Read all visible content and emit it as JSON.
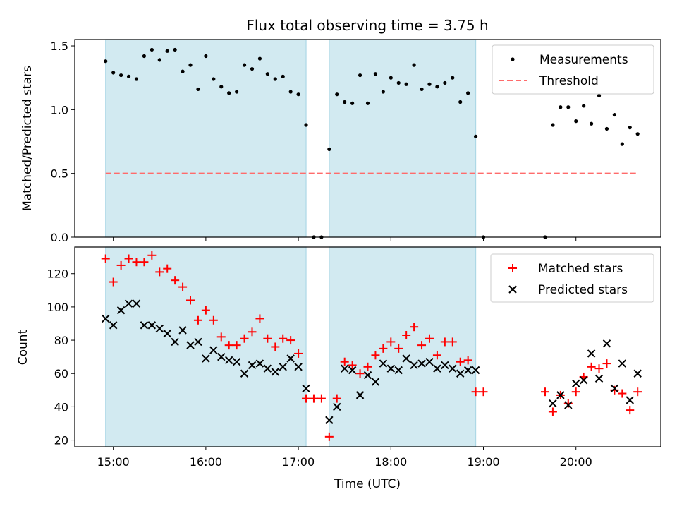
{
  "figure": {
    "title": "Flux total observing time = 3.75 h",
    "xlabel": "Time (UTC)",
    "x_tick_labels": [
      "15:00",
      "16:00",
      "17:00",
      "18:00",
      "19:00",
      "20:00"
    ]
  },
  "colors": {
    "shade": "#add8e6",
    "matched": "#ff0000",
    "predicted": "#000000",
    "threshold": "#ff6b6b",
    "measurement": "#000000"
  },
  "chart_data": [
    {
      "type": "scatter",
      "ylabel": "Matched/Predicted stars",
      "xlim": [
        "14:35",
        "20:55"
      ],
      "ylim": [
        0,
        1.55
      ],
      "yticks": [
        0.0,
        0.5,
        1.0,
        1.5
      ],
      "ytick_labels": [
        "0.0",
        "0.5",
        "1.0",
        "1.5"
      ],
      "grid": false,
      "legend_position": "top-right",
      "shaded_intervals": [
        [
          "14:55",
          "17:05"
        ],
        [
          "17:20",
          "18:55"
        ]
      ],
      "threshold": {
        "name": "Threshold",
        "y": 0.5,
        "x_range": [
          "14:55",
          "20:40"
        ]
      },
      "series": [
        {
          "name": "Measurements",
          "x": [
            "14:55",
            "15:00",
            "15:05",
            "15:10",
            "15:15",
            "15:20",
            "15:25",
            "15:30",
            "15:35",
            "15:40",
            "15:45",
            "15:50",
            "15:55",
            "16:00",
            "16:05",
            "16:10",
            "16:15",
            "16:20",
            "16:25",
            "16:30",
            "16:35",
            "16:40",
            "16:45",
            "16:50",
            "16:55",
            "17:00",
            "17:05",
            "17:10",
            "17:15",
            "17:20",
            "17:25",
            "17:30",
            "17:35",
            "17:40",
            "17:45",
            "17:50",
            "17:55",
            "18:00",
            "18:05",
            "18:10",
            "18:15",
            "18:20",
            "18:25",
            "18:30",
            "18:35",
            "18:40",
            "18:45",
            "18:50",
            "18:55",
            "19:00",
            "19:40",
            "19:45",
            "19:50",
            "19:55",
            "20:00",
            "20:05",
            "20:10",
            "20:15",
            "20:20",
            "20:25",
            "20:30",
            "20:35",
            "20:40"
          ],
          "y": [
            1.38,
            1.29,
            1.27,
            1.26,
            1.24,
            1.42,
            1.47,
            1.39,
            1.46,
            1.47,
            1.3,
            1.35,
            1.16,
            1.42,
            1.24,
            1.18,
            1.13,
            1.14,
            1.35,
            1.32,
            1.4,
            1.28,
            1.24,
            1.26,
            1.14,
            1.12,
            0.88,
            0.0,
            0.0,
            0.69,
            1.12,
            1.06,
            1.05,
            1.27,
            1.05,
            1.28,
            1.14,
            1.25,
            1.21,
            1.2,
            1.35,
            1.16,
            1.2,
            1.18,
            1.21,
            1.25,
            1.06,
            1.13,
            0.79,
            0.0,
            0.0,
            0.88,
            1.02,
            1.02,
            0.91,
            1.03,
            0.89,
            1.11,
            0.85,
            0.96,
            0.73,
            0.86,
            0.81
          ]
        }
      ]
    },
    {
      "type": "scatter",
      "ylabel": "Count",
      "xlim": [
        "14:35",
        "20:55"
      ],
      "ylim": [
        16,
        136
      ],
      "yticks": [
        20,
        40,
        60,
        80,
        100,
        120
      ],
      "ytick_labels": [
        "20",
        "40",
        "60",
        "80",
        "100",
        "120"
      ],
      "grid": false,
      "legend_position": "top-right",
      "shaded_intervals": [
        [
          "14:55",
          "17:05"
        ],
        [
          "17:20",
          "18:55"
        ]
      ],
      "series": [
        {
          "name": "Matched stars",
          "marker": "plus",
          "x": [
            "14:55",
            "15:00",
            "15:05",
            "15:10",
            "15:15",
            "15:20",
            "15:25",
            "15:30",
            "15:35",
            "15:40",
            "15:45",
            "15:50",
            "15:55",
            "16:00",
            "16:05",
            "16:10",
            "16:15",
            "16:20",
            "16:25",
            "16:30",
            "16:35",
            "16:40",
            "16:45",
            "16:50",
            "16:55",
            "17:00",
            "17:05",
            "17:10",
            "17:15",
            "17:20",
            "17:25",
            "17:30",
            "17:35",
            "17:40",
            "17:45",
            "17:50",
            "17:55",
            "18:00",
            "18:05",
            "18:10",
            "18:15",
            "18:20",
            "18:25",
            "18:30",
            "18:35",
            "18:40",
            "18:45",
            "18:50",
            "18:55",
            "19:00",
            "19:40",
            "19:45",
            "19:50",
            "19:55",
            "20:00",
            "20:05",
            "20:10",
            "20:15",
            "20:20",
            "20:25",
            "20:30",
            "20:35",
            "20:40"
          ],
          "y": [
            129,
            115,
            125,
            129,
            127,
            127,
            131,
            121,
            123,
            116,
            112,
            104,
            92,
            98,
            92,
            82,
            77,
            77,
            81,
            85,
            93,
            81,
            76,
            81,
            80,
            72,
            45,
            45,
            45,
            22,
            45,
            67,
            65,
            60,
            64,
            71,
            75,
            79,
            75,
            83,
            88,
            77,
            81,
            71,
            79,
            79,
            67,
            68,
            49,
            49,
            49,
            37,
            47,
            42,
            49,
            58,
            64,
            63,
            66,
            50,
            48,
            38,
            49
          ]
        },
        {
          "name": "Predicted stars",
          "marker": "cross",
          "x": [
            "14:55",
            "15:00",
            "15:05",
            "15:10",
            "15:15",
            "15:20",
            "15:25",
            "15:30",
            "15:35",
            "15:40",
            "15:45",
            "15:50",
            "15:55",
            "16:00",
            "16:05",
            "16:10",
            "16:15",
            "16:20",
            "16:25",
            "16:30",
            "16:35",
            "16:40",
            "16:45",
            "16:50",
            "16:55",
            "17:00",
            "17:05",
            "17:20",
            "17:25",
            "17:30",
            "17:35",
            "17:40",
            "17:45",
            "17:50",
            "17:55",
            "18:00",
            "18:05",
            "18:10",
            "18:15",
            "18:20",
            "18:25",
            "18:30",
            "18:35",
            "18:40",
            "18:45",
            "18:50",
            "18:55",
            "19:45",
            "19:50",
            "19:55",
            "20:00",
            "20:05",
            "20:10",
            "20:15",
            "20:20",
            "20:25",
            "20:30",
            "20:35",
            "20:40"
          ],
          "y": [
            93,
            89,
            98,
            102,
            102,
            89,
            89,
            87,
            84,
            79,
            86,
            77,
            79,
            69,
            74,
            70,
            68,
            67,
            60,
            65,
            66,
            63,
            61,
            64,
            69,
            64,
            51,
            32,
            40,
            63,
            62,
            47,
            59,
            55,
            66,
            63,
            62,
            69,
            65,
            66,
            67,
            63,
            65,
            63,
            60,
            62,
            62,
            42,
            47,
            41,
            54,
            56,
            72,
            57,
            78,
            51,
            66,
            44,
            60
          ]
        }
      ]
    }
  ]
}
